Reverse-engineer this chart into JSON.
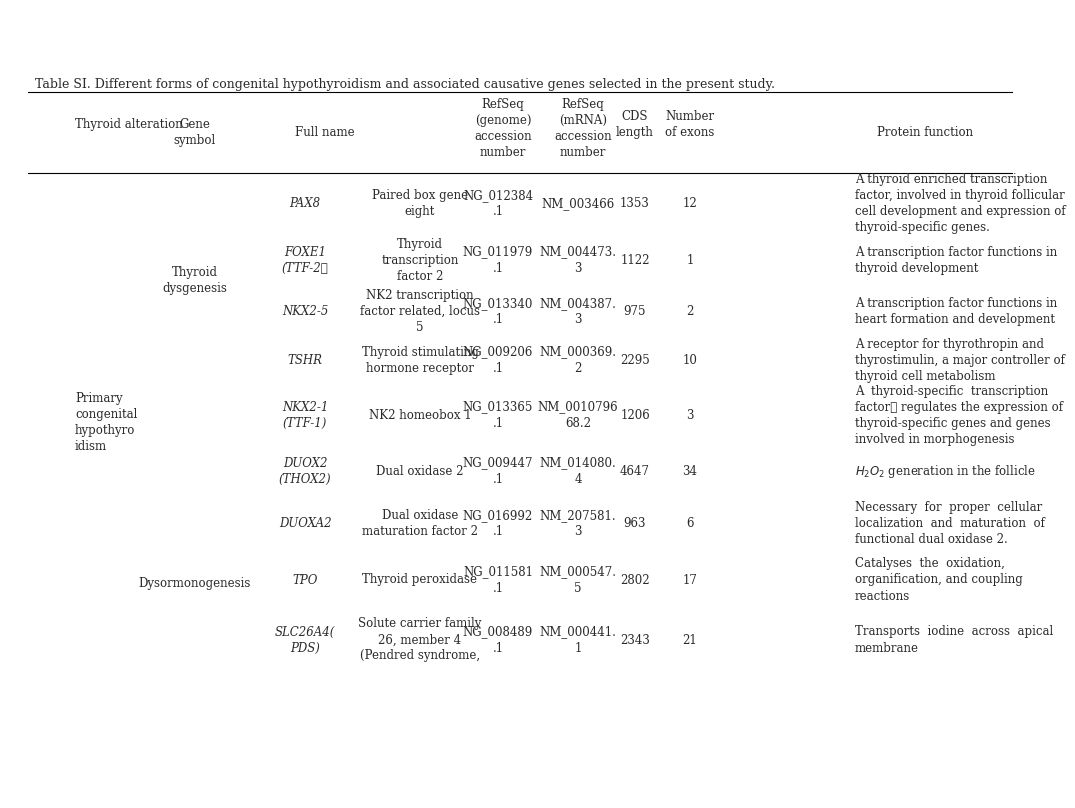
{
  "title": "Table SI. Different forms of congenital hypothyroidism and associated causative genes selected in the present study.",
  "bg_color": "#ffffff",
  "text_color": "#2a2a2a",
  "font_size": 8.5,
  "title_font_size": 9,
  "rows": [
    {
      "gene": "PAX8",
      "full_name": "Paired box gene\neight",
      "refseq_genome": "NG_012384\n.1",
      "refseq_mrna": "NM_003466",
      "cds": "1353",
      "exons": "12",
      "protein_func": "A thyroid enriched transcription\nfactor, involved in thyroid follicular\ncell development and expression of\nthyroid-specific genes."
    },
    {
      "gene": "FOXE1\n(TTF-2）",
      "full_name": "Thyroid\ntranscription\nfactor 2",
      "refseq_genome": "NG_011979\n.1",
      "refseq_mrna": "NM_004473.\n3",
      "cds": "1122",
      "exons": "1",
      "protein_func": "A transcription factor functions in\nthyroid development"
    },
    {
      "gene": "NKX2-5",
      "full_name": "NK2 transcription\nfactor related, locus\n5",
      "refseq_genome": "NG_013340\n.1",
      "refseq_mrna": "NM_004387.\n3",
      "cds": "975",
      "exons": "2",
      "protein_func": "A transcription factor functions in\nheart formation and development"
    },
    {
      "gene": "TSHR",
      "full_name": "Thyroid stimulating\nhormone receptor",
      "refseq_genome": "NG_009206\n.1",
      "refseq_mrna": "NM_000369.\n2",
      "cds": "2295",
      "exons": "10",
      "protein_func": "A receptor for thyrothropin and\nthyrostimulin, a major controller of\nthyroid cell metabolism"
    },
    {
      "gene": "NKX2-1\n(TTF-1)",
      "full_name": "NK2 homeobox 1",
      "refseq_genome": "NG_013365\n.1",
      "refseq_mrna": "NM_0010796\n68.2",
      "cds": "1206",
      "exons": "3",
      "protein_func": "A  thyroid-specific  transcription\nfactor， regulates the expression of\nthyroid-specific genes and genes\ninvolved in morphogenesis"
    },
    {
      "gene": "DUOX2\n(THOX2)",
      "full_name": "Dual oxidase 2",
      "refseq_genome": "NG_009447\n.1",
      "refseq_mrna": "NM_014080.\n4",
      "cds": "4647",
      "exons": "34",
      "protein_func": "H2O2_special"
    },
    {
      "gene": "DUOXA2",
      "full_name": "Dual oxidase\nmaturation factor 2",
      "refseq_genome": "NG_016992\n.1",
      "refseq_mrna": "NM_207581.\n3",
      "cds": "963",
      "exons": "6",
      "protein_func": "Necessary  for  proper  cellular\nlocalization  and  maturation  of\nfunctional dual oxidase 2."
    },
    {
      "gene": "TPO",
      "full_name": "Thyroid peroxidase",
      "refseq_genome": "NG_011581\n.1",
      "refseq_mrna": "NM_000547.\n5",
      "cds": "2802",
      "exons": "17",
      "protein_func": "Catalyses  the  oxidation,\norganification, and coupling\nreactions"
    },
    {
      "gene": "SLC26A4(\nPDS)",
      "full_name": "Solute carrier family\n26, member 4\n(Pendred syndrome,",
      "refseq_genome": "NG_008489\n.1",
      "refseq_mrna": "NM_000441.\n1",
      "cds": "2343",
      "exons": "21",
      "protein_func": "Transports  iodine  across  apical\nmembrane"
    }
  ]
}
